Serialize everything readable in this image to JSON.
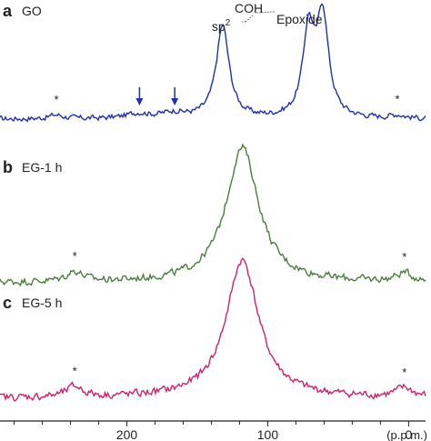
{
  "chart_data": {
    "type": "line",
    "xlabel": "(p.p.m.)",
    "x_tick_labels": [
      "200",
      "100",
      "0"
    ],
    "x_ticks": [
      200,
      100,
      0
    ],
    "xlim": [
      290,
      -12
    ],
    "x_reversed": true,
    "panels": [
      {
        "letter": "a",
        "name": "GO",
        "color": "#1f2fb5",
        "peaks": [
          {
            "center": 132,
            "height": 0.85,
            "width": 5.5,
            "label": "sp",
            "label_sup": "2"
          },
          {
            "center": 71,
            "height": 0.78,
            "width": 4.8,
            "label": "COH"
          },
          {
            "center": 61,
            "height": 0.92,
            "width": 5.0,
            "label": "Epoxide"
          },
          {
            "center": 192,
            "height": 0.045,
            "width": 10
          },
          {
            "center": 167,
            "height": 0.05,
            "width": 10
          },
          {
            "center": 250,
            "height": 0.035,
            "width": 6
          },
          {
            "center": 8,
            "height": 0.03,
            "width": 6
          }
        ],
        "arrows_at": [
          191,
          166
        ],
        "asterisks_at": [
          250,
          8
        ]
      },
      {
        "letter": "b",
        "name": "EG-1 h",
        "color": "#4a7f3c",
        "peaks": [
          {
            "center": 118,
            "height": 0.93,
            "width": 14
          },
          {
            "center": 237,
            "height": 0.07,
            "width": 7
          },
          {
            "center": 3,
            "height": 0.06,
            "width": 7
          }
        ],
        "asterisks_at": [
          237,
          3
        ]
      },
      {
        "letter": "c",
        "name": "EG-5 h",
        "color": "#d0206c",
        "peaks": [
          {
            "center": 118,
            "height": 0.92,
            "width": 14
          },
          {
            "center": 237,
            "height": 0.07,
            "width": 7
          },
          {
            "center": 3,
            "height": 0.06,
            "width": 7
          }
        ],
        "asterisks_at": [
          237,
          3
        ]
      }
    ],
    "asterisk_symbol": "*",
    "grid": false,
    "legend": "none"
  }
}
